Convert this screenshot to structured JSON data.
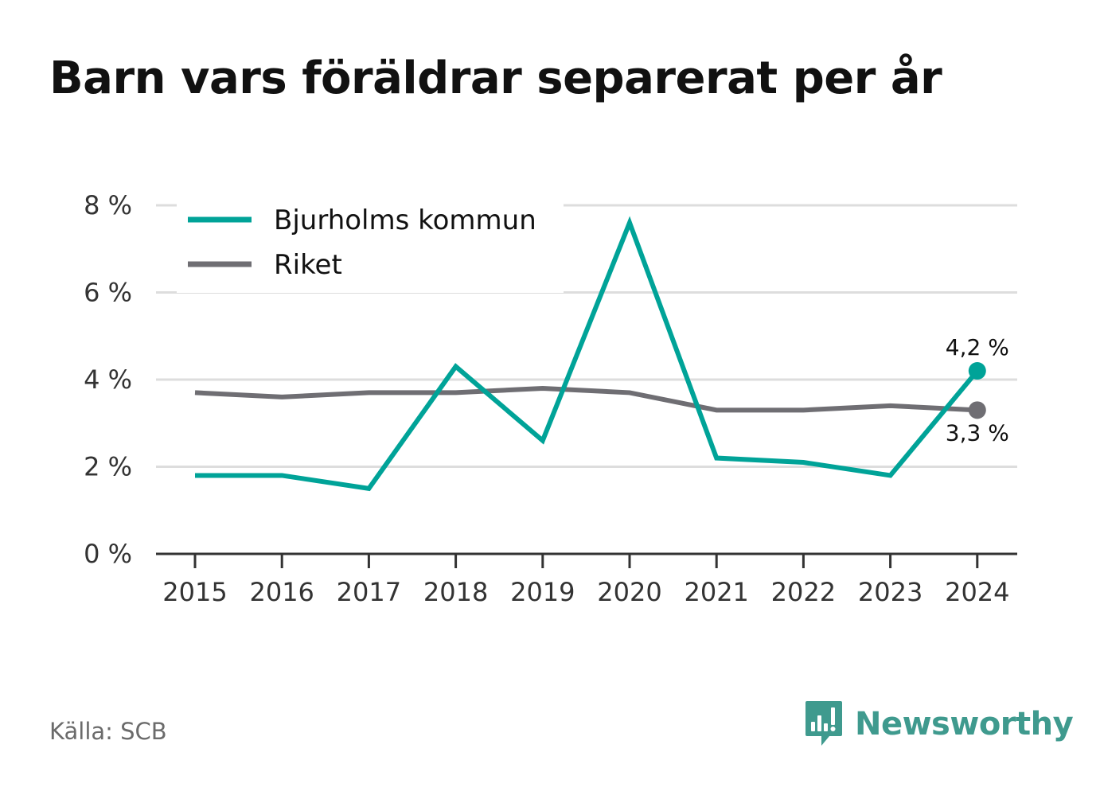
{
  "title": "Barn vars föräldrar separerat per år",
  "source": "Källa: SCB",
  "brand": "Newsworthy",
  "colors": {
    "series_1": "#00a398",
    "series_2": "#6f6e73",
    "grid": "#dddddd",
    "axis": "#333333",
    "brand": "#3f9a8e"
  },
  "chart_data": {
    "type": "line",
    "x": [
      "2015",
      "2016",
      "2017",
      "2018",
      "2019",
      "2020",
      "2021",
      "2022",
      "2023",
      "2024"
    ],
    "series": [
      {
        "name": "Bjurholms kommun",
        "color": "#00a398",
        "values": [
          1.8,
          1.8,
          1.5,
          4.3,
          2.6,
          7.6,
          2.2,
          2.1,
          1.8,
          4.2
        ]
      },
      {
        "name": "Riket",
        "color": "#6f6e73",
        "values": [
          3.7,
          3.6,
          3.7,
          3.7,
          3.8,
          3.7,
          3.3,
          3.3,
          3.4,
          3.3
        ]
      }
    ],
    "y_ticks": [
      0,
      2,
      4,
      6,
      8
    ],
    "y_tick_labels": [
      "0 %",
      "2 %",
      "4 %",
      "6 %",
      "8 %"
    ],
    "ylim": [
      0,
      8
    ],
    "end_labels": [
      "4,2 %",
      "3,3 %"
    ],
    "grid": true,
    "legend_position": "top-left"
  }
}
